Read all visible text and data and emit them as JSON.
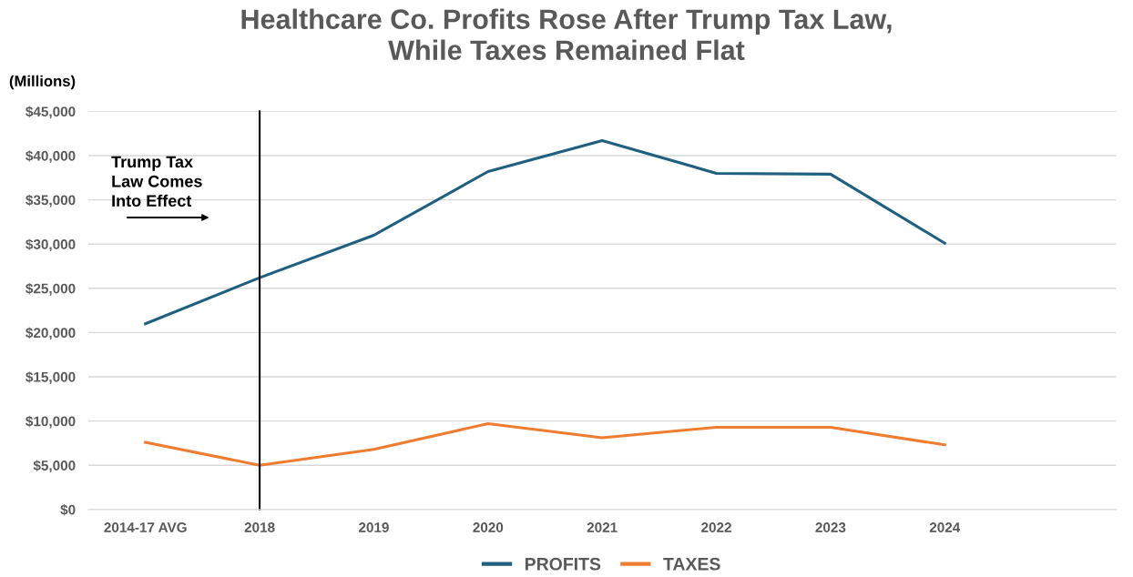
{
  "chart_data": {
    "type": "line",
    "title": "Healthcare Co. Profits Rose After Trump Tax Law,\nWhile Taxes Remained Flat",
    "ylabel": "(Millions)",
    "categories": [
      "2014-17 AVG",
      "2018",
      "2019",
      "2020",
      "2021",
      "2022",
      "2023",
      "2024",
      null
    ],
    "series": [
      {
        "name": "PROFITS",
        "color": "#1f5f7f",
        "values": [
          21000,
          26200,
          31000,
          38200,
          41700,
          38000,
          37900,
          30100,
          null
        ]
      },
      {
        "name": "TAXES",
        "color": "#ee7d31",
        "values": [
          7600,
          5000,
          6800,
          9700,
          8100,
          9300,
          9300,
          7300,
          null
        ]
      }
    ],
    "ylim": [
      0,
      45000
    ],
    "yticks": [
      {
        "value": 0,
        "label": "$0"
      },
      {
        "value": 5000,
        "label": "$5,000"
      },
      {
        "value": 10000,
        "label": "$10,000"
      },
      {
        "value": 15000,
        "label": "$15,000"
      },
      {
        "value": 20000,
        "label": "$20,000"
      },
      {
        "value": 25000,
        "label": "$25,000"
      },
      {
        "value": 30000,
        "label": "$30,000"
      },
      {
        "value": 35000,
        "label": "$35,000"
      },
      {
        "value": 40000,
        "label": "$40,000"
      },
      {
        "value": 45000,
        "label": "$45,000"
      }
    ],
    "ref_lines": [
      {
        "axis": "x",
        "value": "2018",
        "color": "#000000",
        "line_style": "solid"
      }
    ],
    "annotations": [
      "Trump Tax\nLaw Comes\nInto Effect"
    ],
    "grid": "y",
    "legend": "bottom",
    "marker": "none",
    "line_style": "solid"
  }
}
